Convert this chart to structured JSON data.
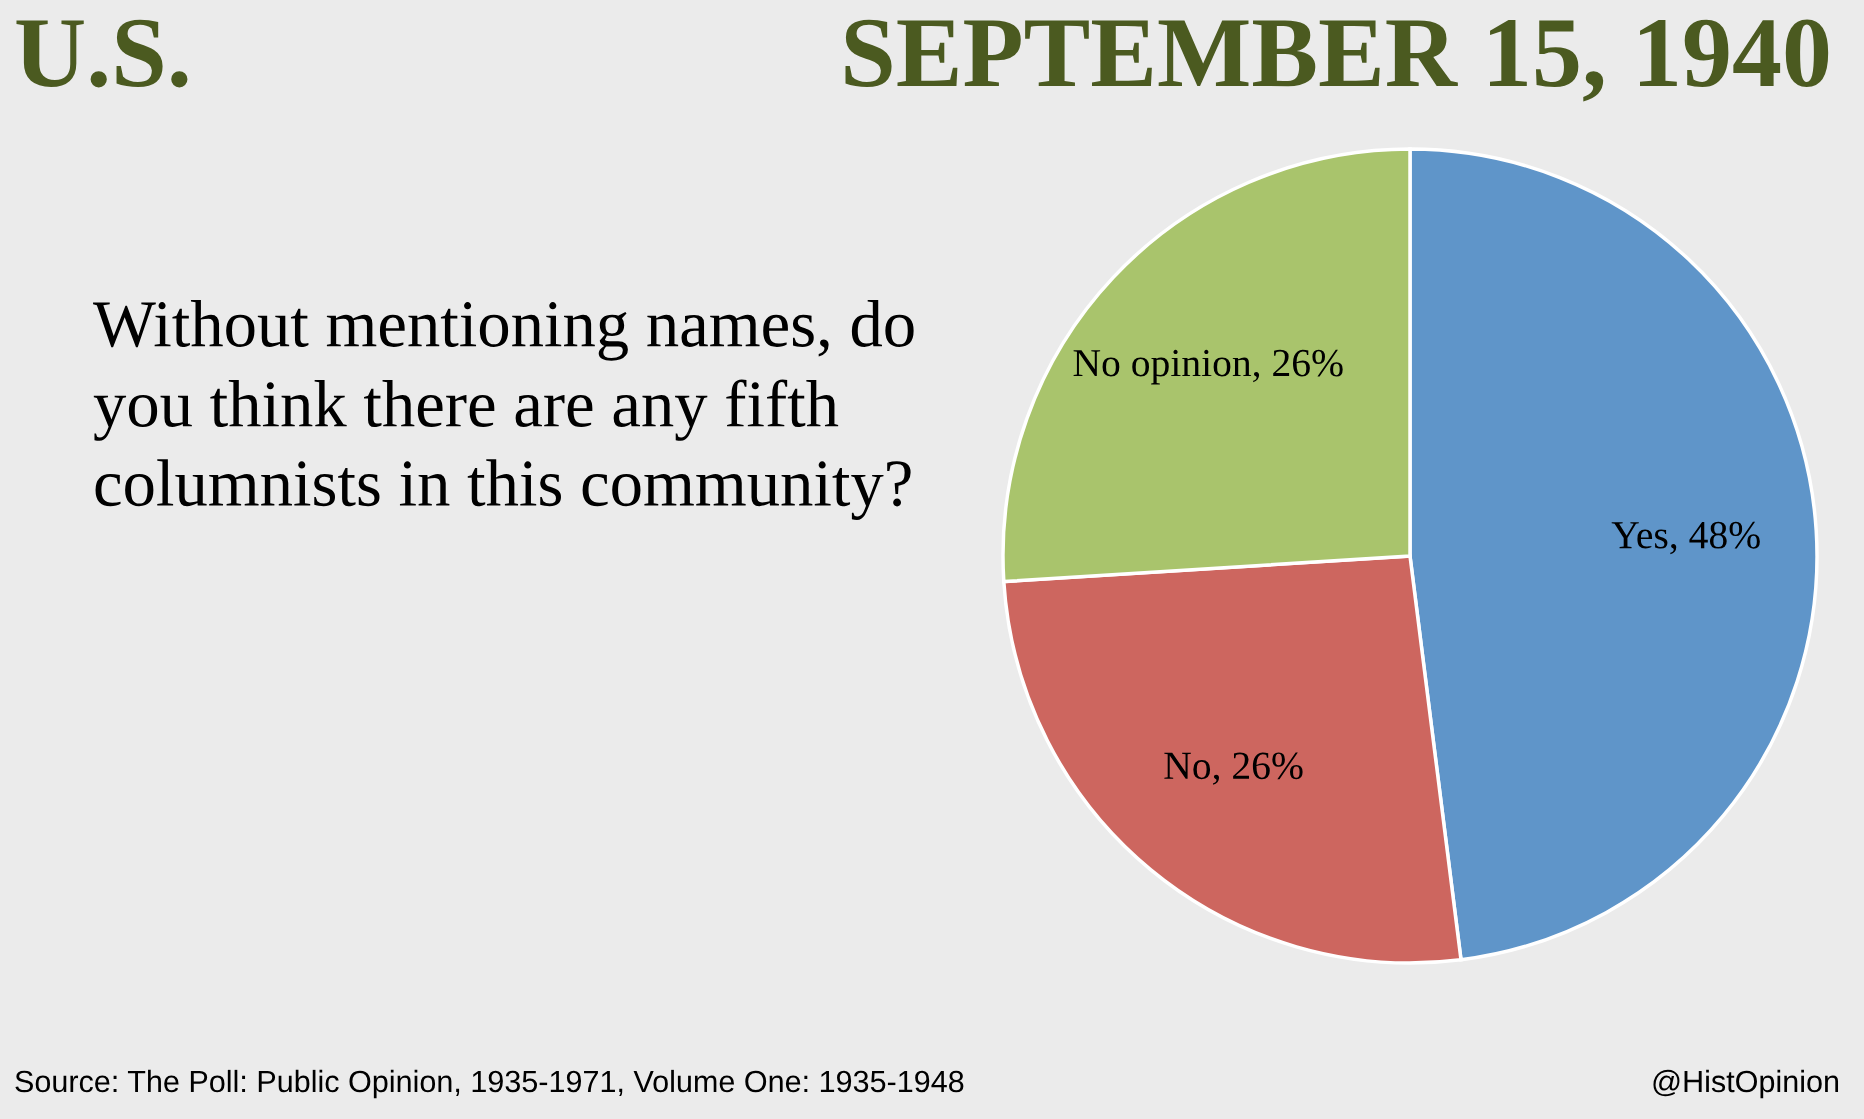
{
  "chart_data": {
    "type": "pie",
    "title": "U.S.",
    "subtitle": "SEPTEMBER 15, 1940",
    "categories": [
      "Yes",
      "No",
      "No opinion"
    ],
    "values": [
      48,
      26,
      26
    ],
    "colors": [
      "#5f95c9",
      "#cd665f",
      "#a9c46c"
    ],
    "value_labels": [
      "48%",
      "26%",
      "26%"
    ],
    "annotations": [
      "Without mentioning names, do\nyou think there are any fifth\ncolumnists in this community?",
      "Source: The Poll: Public Opinion, 1935-1971, Volume One: 1935-1948",
      "@HistOpinion"
    ]
  }
}
